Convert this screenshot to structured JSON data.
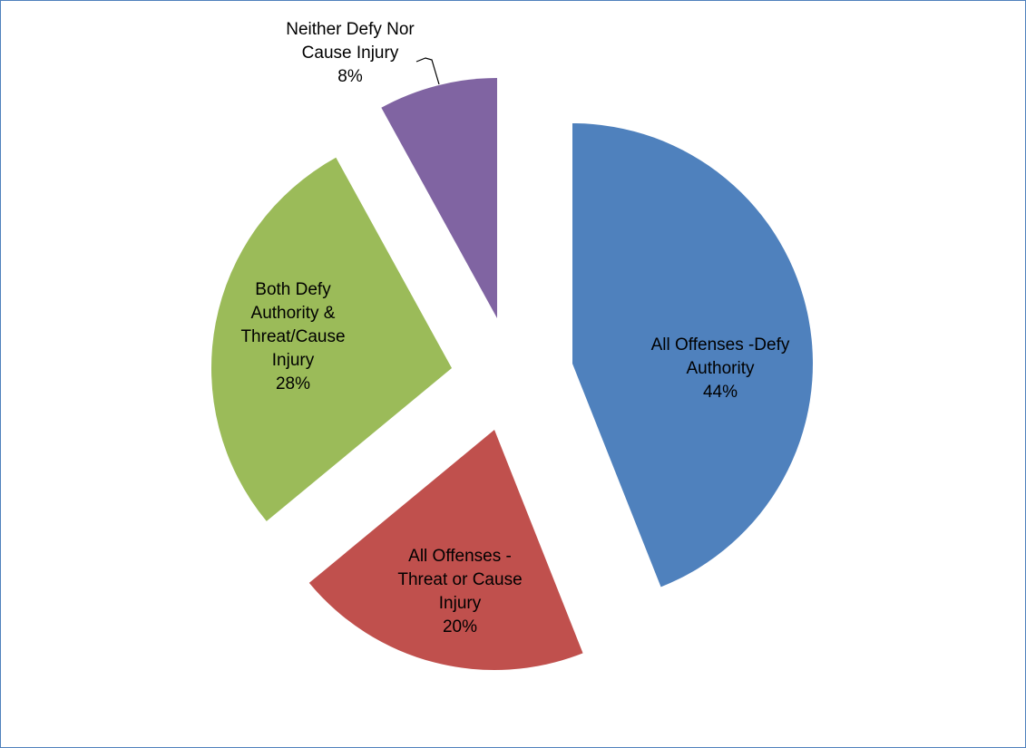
{
  "chart_data": {
    "type": "pie",
    "title": "",
    "exploded": true,
    "legend": "none",
    "start_angle_deg": 0,
    "direction": "clockwise",
    "slices": [
      {
        "label_lines": [
          "All Offenses -Defy",
          "Authority"
        ],
        "value": 44,
        "pct_text": "44%",
        "color": "#4f81bd"
      },
      {
        "label_lines": [
          "All Offenses -",
          "Threat or Cause",
          "Injury"
        ],
        "value": 20,
        "pct_text": "20%",
        "color": "#c0504d"
      },
      {
        "label_lines": [
          "Both Defy",
          "Authority &",
          "Threat/Cause",
          "Injury"
        ],
        "value": 28,
        "pct_text": "28%",
        "color": "#9bbb59"
      },
      {
        "label_lines": [
          "Neither Defy Nor",
          "Cause Injury"
        ],
        "value": 8,
        "pct_text": "8%",
        "color": "#8064a2"
      }
    ]
  }
}
